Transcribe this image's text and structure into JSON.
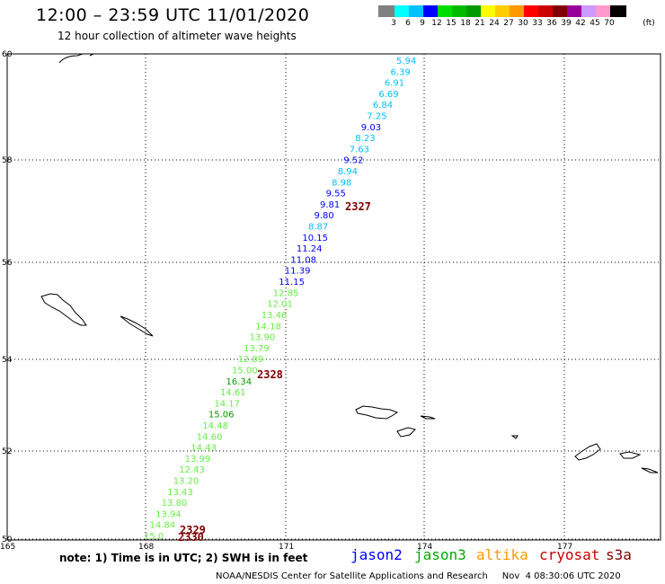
{
  "header": {
    "title": "12:00 – 23:59 UTC 11/01/2020",
    "subtitle": "12 hour collection of altimeter wave heights"
  },
  "legend": {
    "colors": [
      "#808080",
      "#00ffff",
      "#00bfff",
      "#0000ff",
      "#00dd00",
      "#00bb00",
      "#009900",
      "#ffff00",
      "#ffcc00",
      "#ff9900",
      "#ff0000",
      "#cc0000",
      "#800000",
      "#990099",
      "#cc99ff",
      "#ff99cc",
      "#000000"
    ],
    "labels": [
      "3",
      "6",
      "9",
      "12",
      "15",
      "18",
      "21",
      "24",
      "27",
      "30",
      "33",
      "36",
      "39",
      "42",
      "45",
      "70",
      "(ft)"
    ]
  },
  "map": {
    "lat_labels": [
      "60",
      "58",
      "56",
      "54",
      "52",
      "50"
    ],
    "lon_labels": [
      "165",
      "168",
      "171",
      "174",
      "177"
    ]
  },
  "track": {
    "values": [
      "5.94",
      "6.39",
      "6.91",
      "6.69",
      "6.84",
      "7.25",
      "9.03",
      "8.23",
      "7.63",
      "9.52",
      "8.94",
      "8.98",
      "9.55",
      "9.81",
      "9.80",
      "8.87",
      "10.15",
      "11.24",
      "11.08",
      "11.39",
      "11.15",
      "12.85",
      "12.01",
      "13.46",
      "14.18",
      "13.90",
      "13.79",
      "12.89",
      "15.00",
      "16.34",
      "14.61",
      "14.17",
      "15.06",
      "14.48",
      "14.60",
      "14.43",
      "13.99",
      "12.43",
      "13.20",
      "13.43",
      "13.80",
      "13.94",
      "14.84",
      "15.0"
    ],
    "colors": [
      "#00bfff",
      "#00bfff",
      "#00bfff",
      "#00bfff",
      "#00bfff",
      "#00bfff",
      "#0000ff",
      "#00bfff",
      "#00bfff",
      "#0000ff",
      "#00bfff",
      "#00bfff",
      "#0000ff",
      "#0000ff",
      "#0000ff",
      "#00bfff",
      "#0000ff",
      "#0000ff",
      "#0000ff",
      "#0000ff",
      "#0000ff",
      "#66ee44",
      "#66ee44",
      "#66ee44",
      "#66ee44",
      "#66ee44",
      "#66ee44",
      "#66ee44",
      "#66ee44",
      "#009900",
      "#66ee44",
      "#66ee44",
      "#009900",
      "#66ee44",
      "#66ee44",
      "#66ee44",
      "#66ee44",
      "#66ee44",
      "#66ee44",
      "#66ee44",
      "#66ee44",
      "#66ee44",
      "#66ee44",
      "#66ee44"
    ]
  },
  "passes": [
    "2327",
    "2328",
    "2329",
    "2330"
  ],
  "footnote": "note: 1) Time is in UTC; 2) SWH is in feet",
  "satellites": [
    {
      "name": "jason2",
      "color": "#0000ff"
    },
    {
      "name": "jason3",
      "color": "#00aa00"
    },
    {
      "name": "altika",
      "color": "#ff9900"
    },
    {
      "name": "cryosat",
      "color": "#cc0000"
    },
    {
      "name": "s3a",
      "color": "#880000"
    }
  ],
  "credit": "NOAA/NESDIS Center for Satellite Applications and Research     Nov  4 08:30:06 UTC 2020"
}
